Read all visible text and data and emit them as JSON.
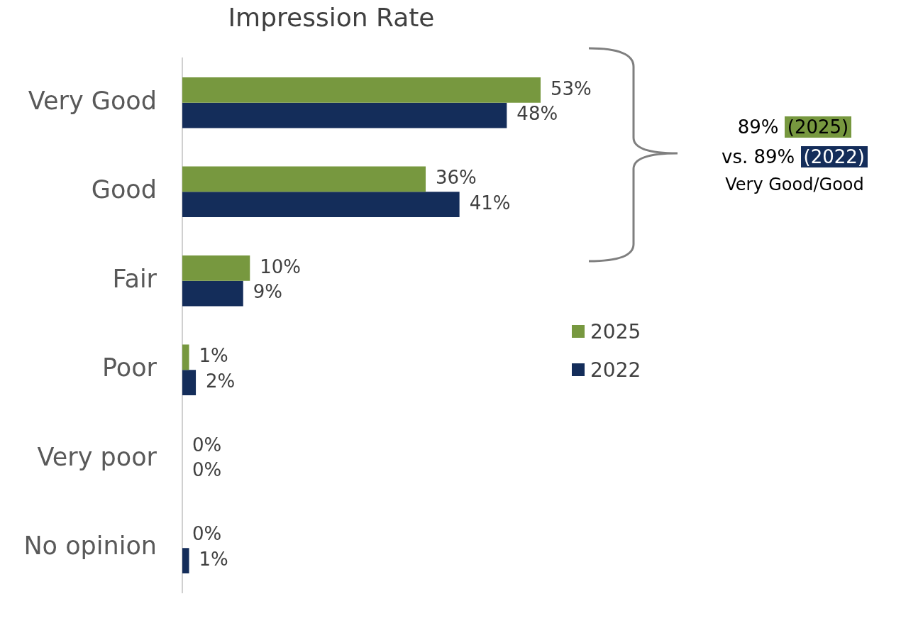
{
  "chart_data": {
    "type": "bar",
    "orientation": "horizontal",
    "title": "Impression Rate",
    "categories": [
      "Very Good",
      "Good",
      "Fair",
      "Poor",
      "Very poor",
      "No opinion"
    ],
    "series": [
      {
        "name": "2025",
        "color": "#77983f",
        "values": [
          53,
          36,
          10,
          1,
          0,
          0
        ],
        "value_labels": [
          "53%",
          "36%",
          "10%",
          "1%",
          "0%",
          "0%"
        ]
      },
      {
        "name": "2022",
        "color": "#142d5a",
        "values": [
          48,
          41,
          9,
          2,
          0,
          1
        ],
        "value_labels": [
          "48%",
          "41%",
          "9%",
          "2%",
          "0%",
          "1%"
        ]
      }
    ],
    "tick_labels": "y",
    "legend": "right",
    "annotations": [
      "89% (2025)",
      "vs. 89% (2022)",
      "Very Good/Good"
    ]
  }
}
